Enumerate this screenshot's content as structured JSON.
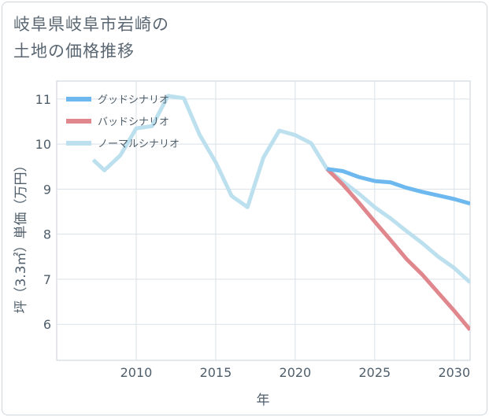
{
  "title_line1": "岐阜県岐阜市岩崎の",
  "title_line2": "土地の価格推移",
  "chart_data": {
    "type": "line",
    "xlabel": "年",
    "ylabel": "坪（3.3㎡）単価（万円）",
    "xlim": [
      2005,
      2031
    ],
    "ylim": [
      5.2,
      11.4
    ],
    "xticks": [
      2010,
      2015,
      2020,
      2025,
      2030
    ],
    "yticks": [
      6,
      7,
      8,
      9,
      10,
      11
    ],
    "grid": true,
    "legend_position": "top-left",
    "series": [
      {
        "name": "グッドシナリオ",
        "color": "#6db9ef",
        "x": [
          2022,
          2023,
          2024,
          2025,
          2026,
          2027,
          2028,
          2029,
          2030,
          2031
        ],
        "y": [
          9.45,
          9.4,
          9.27,
          9.18,
          9.15,
          9.03,
          8.94,
          8.86,
          8.78,
          8.68
        ]
      },
      {
        "name": "バッドシナリオ",
        "color": "#e0878e",
        "x": [
          2022,
          2023,
          2024,
          2025,
          2026,
          2027,
          2028,
          2029,
          2030,
          2031
        ],
        "y": [
          9.45,
          9.1,
          8.7,
          8.28,
          7.87,
          7.45,
          7.1,
          6.7,
          6.3,
          5.88
        ]
      },
      {
        "name": "ノーマルシナリオ",
        "color": "#bde0ef",
        "x": [
          2007.3,
          2008,
          2009,
          2010,
          2011,
          2012,
          2013,
          2014,
          2015,
          2016,
          2017,
          2018,
          2019,
          2020,
          2021,
          2022,
          2023,
          2024,
          2025,
          2026,
          2027,
          2028,
          2029,
          2030,
          2031
        ],
        "y": [
          9.65,
          9.42,
          9.75,
          10.35,
          10.4,
          11.07,
          11.02,
          10.2,
          9.6,
          8.85,
          8.6,
          9.7,
          10.3,
          10.2,
          10.02,
          9.45,
          9.17,
          8.9,
          8.6,
          8.35,
          8.07,
          7.8,
          7.5,
          7.25,
          6.93
        ]
      }
    ]
  }
}
